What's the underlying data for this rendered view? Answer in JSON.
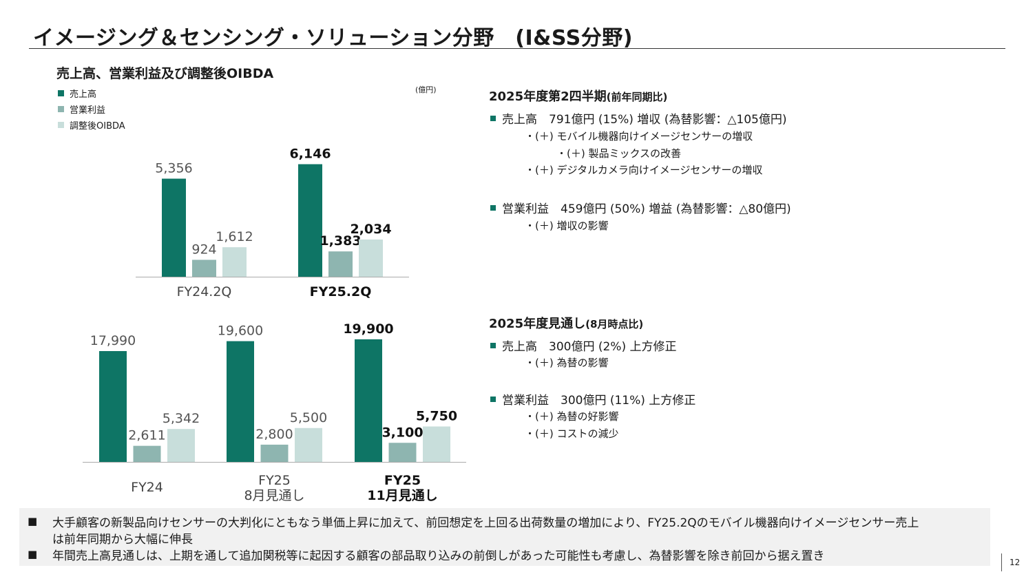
{
  "title": "イメージング＆センシング・ソリューション分野　(I&SS分野)",
  "chart_section_title": "売上高、営業利益及び調整後OIBDA",
  "unit": "(億円)",
  "colors": {
    "sales": "#0e7565",
    "op_income": "#8eb5b0",
    "oibda": "#c8dedb",
    "axis": "#aaaaaa"
  },
  "chart_data": [
    {
      "type": "bar",
      "title": "売上高、営業利益及び調整後OIBDA",
      "unit": "(億円)",
      "categories": [
        "FY24.2Q",
        "FY25.2Q"
      ],
      "category_bold": [
        false,
        true
      ],
      "series": [
        {
          "name": "売上高",
          "values": [
            5356,
            6146
          ],
          "labels": [
            "5,356",
            "6,146"
          ]
        },
        {
          "name": "営業利益",
          "values": [
            924,
            1383
          ],
          "labels": [
            "924",
            "1,383"
          ]
        },
        {
          "name": "調整後OIBDA",
          "values": [
            1612,
            2034
          ],
          "labels": [
            "1,612",
            "2,034"
          ]
        }
      ]
    },
    {
      "type": "bar",
      "categories": [
        "FY24",
        "FY25 8月見通し",
        "FY25 11月見通し"
      ],
      "category_lines": [
        [
          "FY24"
        ],
        [
          "FY25",
          "8月見通し"
        ],
        [
          "FY25",
          "11月見通し"
        ]
      ],
      "category_bold": [
        false,
        false,
        true
      ],
      "series": [
        {
          "name": "売上高",
          "values": [
            17990,
            19600,
            19900
          ],
          "labels": [
            "17,990",
            "19,600",
            "19,900"
          ]
        },
        {
          "name": "営業利益",
          "values": [
            2611,
            2800,
            3100
          ],
          "labels": [
            "2,611",
            "2,800",
            "3,100"
          ]
        },
        {
          "name": "調整後OIBDA",
          "values": [
            5342,
            5500,
            5750
          ],
          "labels": [
            "5,342",
            "5,500",
            "5,750"
          ]
        }
      ]
    }
  ],
  "legend": [
    "売上高",
    "営業利益",
    "調整後OIBDA"
  ],
  "q2": {
    "heading": "2025年度第2四半期",
    "heading_note": "(前年同期比)",
    "sales": "売上高　791億円 (15%) 増収 (為替影響：△105億円)",
    "sales_sub1": "・(＋) モバイル機器向けイメージセンサーの増収",
    "sales_sub2": "・(＋) 製品ミックスの改善",
    "sales_sub3": "・(＋) デジタルカメラ向けイメージセンサーの増収",
    "op": "営業利益　459億円 (50%) 増益 (為替影響：△80億円)",
    "op_sub1": "・(＋) 増収の影響"
  },
  "fy": {
    "heading": "2025年度見通し",
    "heading_note": "(8月時点比)",
    "sales": "売上高　300億円 (2%) 上方修正",
    "sales_sub1": "・(＋) 為替の影響",
    "op": "営業利益　300億円 (11%) 上方修正",
    "op_sub1": "・(＋) 為替の好影響",
    "op_sub2": "・(＋) コストの減少"
  },
  "footnotes": {
    "mark": "■",
    "line1": "大手顧客の新製品向けセンサーの大判化にともなう単価上昇に加えて、前回想定を上回る出荷数量の増加により、FY25.2Qのモバイル機器向けイメージセンサー売上",
    "line1b": "は前年同期から大幅に伸長",
    "line2": "年間売上高見通しは、上期を通して追加関税等に起因する顧客の部品取り込みの前倒しがあった可能性も考慮し、為替影響を除き前回から据え置き"
  },
  "page_number": "12"
}
